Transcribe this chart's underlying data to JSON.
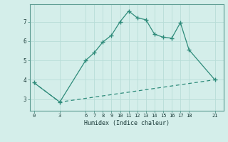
{
  "line1_x": [
    0,
    3,
    6,
    7,
    8,
    9,
    10,
    11,
    12,
    13,
    14,
    15,
    16,
    17,
    18,
    21
  ],
  "line1_y": [
    3.85,
    2.85,
    5.0,
    5.4,
    5.95,
    6.3,
    7.0,
    7.55,
    7.2,
    7.1,
    6.35,
    6.2,
    6.15,
    6.95,
    5.55,
    4.0
  ],
  "line2_x": [
    0,
    3,
    21
  ],
  "line2_y": [
    3.85,
    2.85,
    4.0
  ],
  "line_color": "#2e8b7a",
  "bg_color": "#d4eeea",
  "grid_color": "#b8ddd8",
  "xlabel": "Humidex (Indice chaleur)",
  "xticks": [
    0,
    3,
    6,
    7,
    8,
    9,
    10,
    11,
    12,
    13,
    14,
    15,
    16,
    17,
    18,
    21
  ],
  "yticks": [
    3,
    4,
    5,
    6,
    7
  ],
  "xlim": [
    -0.5,
    22
  ],
  "ylim": [
    2.4,
    7.9
  ]
}
